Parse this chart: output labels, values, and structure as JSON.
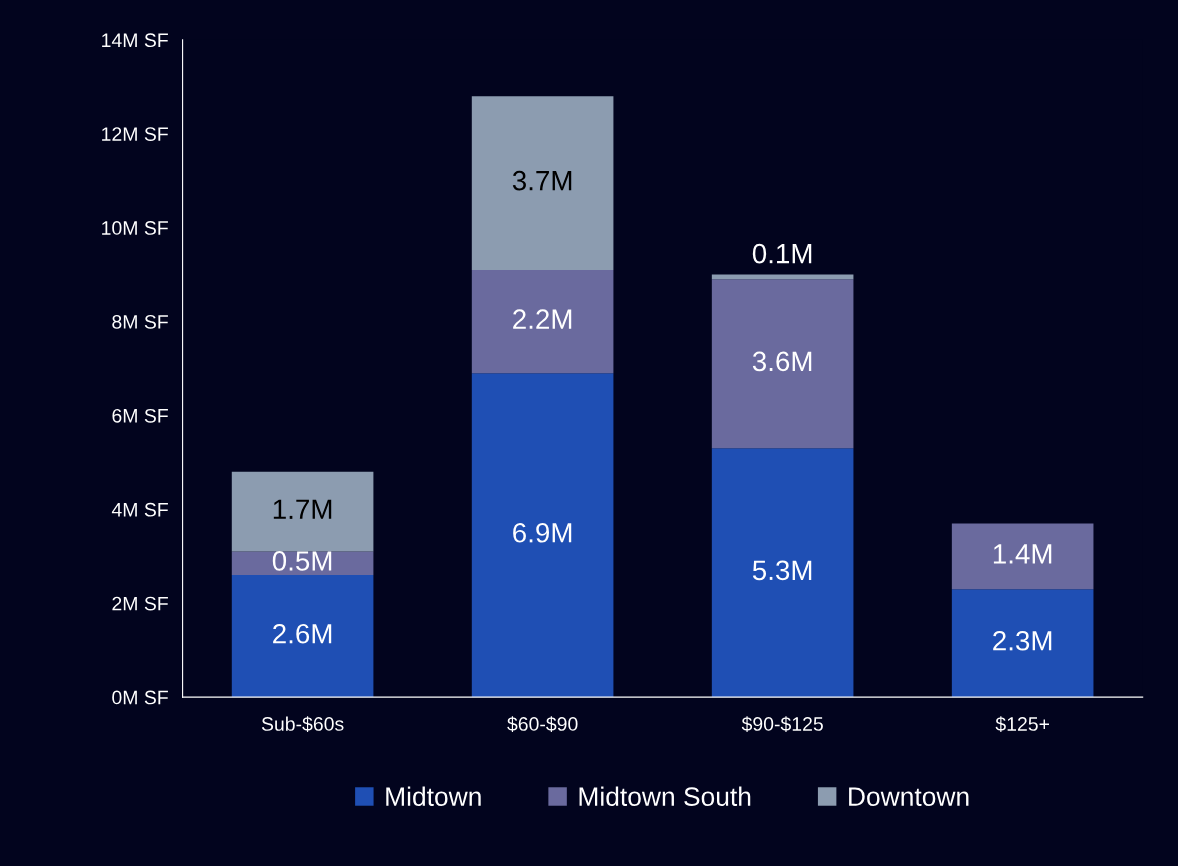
{
  "chart_data": {
    "type": "bar",
    "stacked": true,
    "categories": [
      "Sub-$60s",
      "$60-$90",
      "$90-$125",
      "$125+"
    ],
    "series": [
      {
        "name": "Midtown",
        "color": "#1f4fb4",
        "values": [
          2.6,
          6.9,
          5.3,
          2.3
        ],
        "value_labels": [
          "2.6M",
          "6.9M",
          "5.3M",
          "2.3M"
        ]
      },
      {
        "name": "Midtown South",
        "color": "#6a6a9e",
        "values": [
          0.5,
          2.2,
          3.6,
          1.4
        ],
        "value_labels": [
          "0.5M",
          "2.2M",
          "3.6M",
          "1.4M"
        ]
      },
      {
        "name": "Downtown",
        "color": "#8c9cb0",
        "values": [
          1.7,
          3.7,
          0.1,
          null
        ],
        "value_labels": [
          "1.7M",
          "3.7M",
          "0.1M",
          null
        ]
      }
    ],
    "ylim": [
      0,
      14
    ],
    "yticks": [
      {
        "value": 0,
        "label": "0M SF"
      },
      {
        "value": 2,
        "label": "2M SF"
      },
      {
        "value": 4,
        "label": "4M SF"
      },
      {
        "value": 6,
        "label": "6M SF"
      },
      {
        "value": 8,
        "label": "8M SF"
      },
      {
        "value": 10,
        "label": "10M SF"
      },
      {
        "value": 12,
        "label": "12M SF"
      },
      {
        "value": 14,
        "label": "14M SF"
      }
    ],
    "grid": false,
    "legend": "bottom"
  }
}
